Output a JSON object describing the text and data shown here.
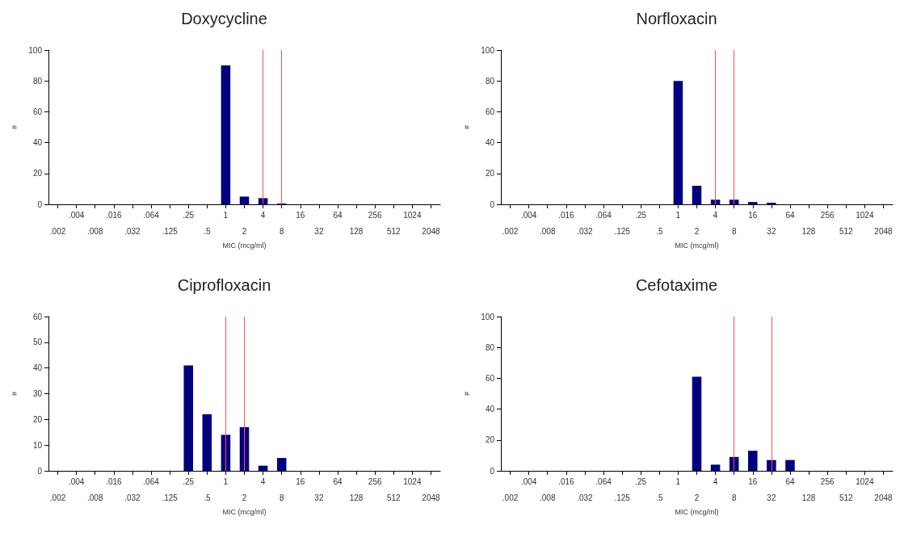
{
  "chart_data": [
    {
      "type": "bar",
      "title": "Doxycycline",
      "xlabel": "MIC (mcg/ml)",
      "ylabel": "#",
      "categories": [
        ".002",
        ".004",
        ".008",
        ".016",
        ".032",
        ".064",
        ".125",
        ".25",
        ".5",
        "1",
        "2",
        "4",
        "8",
        "16",
        "32",
        "64",
        "128",
        "256",
        "512",
        "1024",
        "2048"
      ],
      "values": [
        0,
        0,
        0,
        0,
        0,
        0,
        0,
        0,
        0,
        90,
        5,
        4,
        0.5,
        0,
        0,
        0,
        0,
        0,
        0,
        0,
        0
      ],
      "color": "#000080",
      "ylim": [
        0,
        100
      ],
      "yticks": [
        0,
        20,
        40,
        60,
        80,
        100
      ],
      "grid": false,
      "ref_lines": [
        {
          "axis": "x",
          "value": "4",
          "color": "#ff5050"
        },
        {
          "axis": "x",
          "value": "8",
          "color": "#ff5050"
        }
      ]
    },
    {
      "type": "bar",
      "title": "Norfloxacin",
      "xlabel": "MIC (mcg/ml)",
      "ylabel": "#",
      "categories": [
        ".002",
        ".004",
        ".008",
        ".016",
        ".032",
        ".064",
        ".125",
        ".25",
        ".5",
        "1",
        "2",
        "4",
        "8",
        "16",
        "32",
        "64",
        "128",
        "256",
        "512",
        "1024",
        "2048"
      ],
      "values": [
        0,
        0,
        0,
        0,
        0,
        0,
        0,
        0,
        0,
        80,
        12,
        3,
        3,
        1.5,
        1,
        0,
        0,
        0,
        0,
        0,
        0
      ],
      "color": "#000080",
      "ylim": [
        0,
        100
      ],
      "yticks": [
        0,
        20,
        40,
        60,
        80,
        100
      ],
      "grid": false,
      "ref_lines": [
        {
          "axis": "x",
          "value": "4",
          "color": "#ff5050"
        },
        {
          "axis": "x",
          "value": "8",
          "color": "#ff5050"
        }
      ]
    },
    {
      "type": "bar",
      "title": "Ciprofloxacin",
      "xlabel": "MIC (mcg/ml)",
      "ylabel": "#",
      "categories": [
        ".002",
        ".004",
        ".008",
        ".016",
        ".032",
        ".064",
        ".125",
        ".25",
        ".5",
        "1",
        "2",
        "4",
        "8",
        "16",
        "32",
        "64",
        "128",
        "256",
        "512",
        "1024",
        "2048"
      ],
      "values": [
        0,
        0,
        0,
        0,
        0,
        0,
        0,
        41,
        22,
        14,
        17,
        2,
        5,
        0,
        0,
        0,
        0,
        0,
        0,
        0,
        0
      ],
      "color": "#000080",
      "ylim": [
        0,
        60
      ],
      "yticks": [
        0,
        10,
        20,
        30,
        40,
        50,
        60
      ],
      "grid": false,
      "ref_lines": [
        {
          "axis": "x",
          "value": "1",
          "color": "#ff5050"
        },
        {
          "axis": "x",
          "value": "2",
          "color": "#ff5050"
        }
      ]
    },
    {
      "type": "bar",
      "title": "Cefotaxime",
      "xlabel": "MIC (mcg/ml)",
      "ylabel": "#",
      "categories": [
        ".002",
        ".004",
        ".008",
        ".016",
        ".032",
        ".064",
        ".125",
        ".25",
        ".5",
        "1",
        "2",
        "4",
        "8",
        "16",
        "32",
        "64",
        "128",
        "256",
        "512",
        "1024",
        "2048"
      ],
      "values": [
        0,
        0,
        0,
        0,
        0,
        0,
        0,
        0,
        0,
        0,
        61,
        4,
        9,
        13,
        7,
        7,
        0,
        0,
        0,
        0,
        0
      ],
      "color": "#000080",
      "ylim": [
        0,
        100
      ],
      "yticks": [
        0,
        20,
        40,
        60,
        80,
        100
      ],
      "grid": false,
      "ref_lines": [
        {
          "axis": "x",
          "value": "8",
          "color": "#ff5050"
        },
        {
          "axis": "x",
          "value": "32",
          "color": "#ff5050"
        }
      ]
    }
  ]
}
